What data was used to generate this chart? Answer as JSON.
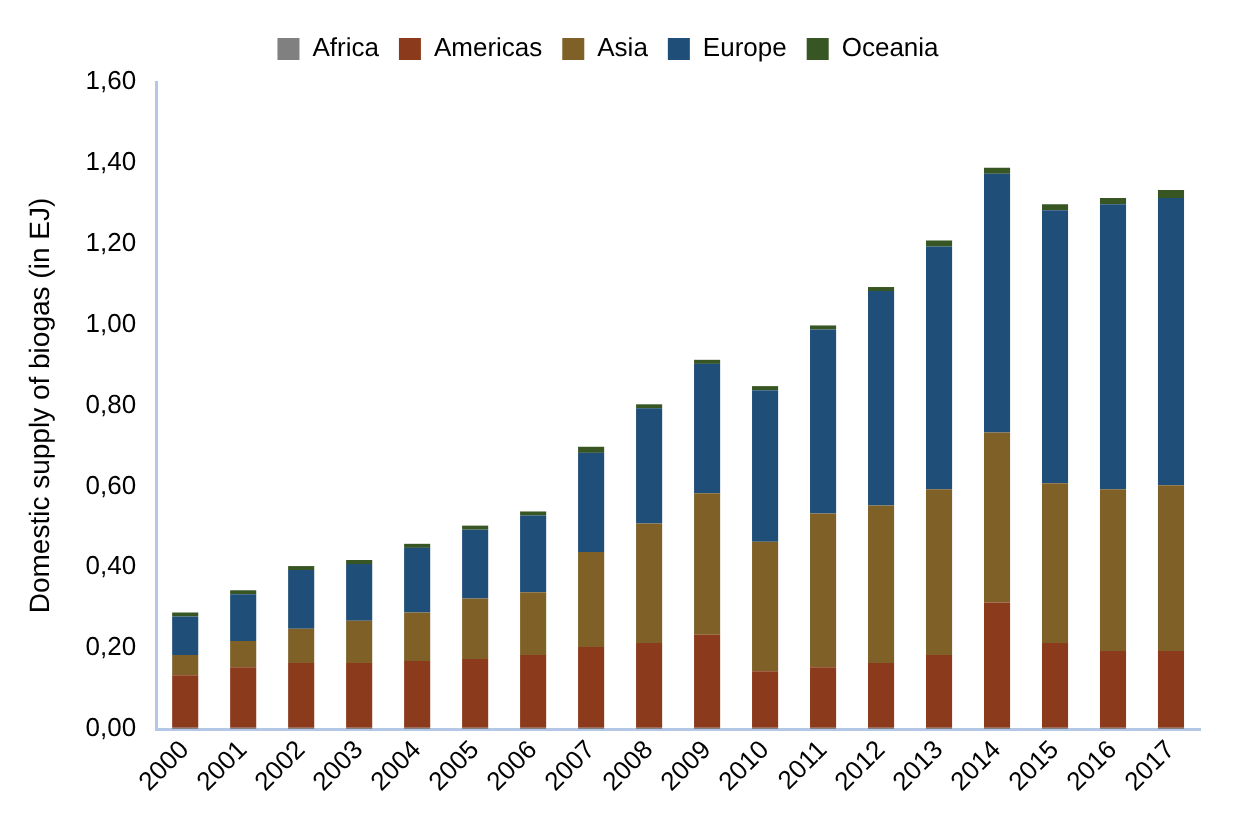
{
  "chart_data": {
    "type": "bar",
    "stacked": true,
    "ylabel": "Domestic supply of biogas (in EJ)",
    "categories": [
      "2000",
      "2001",
      "2002",
      "2003",
      "2004",
      "2005",
      "2006",
      "2007",
      "2008",
      "2009",
      "2010",
      "2011",
      "2012",
      "2013",
      "2014",
      "2015",
      "2016",
      "2017"
    ],
    "series": [
      {
        "name": "Africa",
        "color": "#808080",
        "values": [
          0.003,
          0.003,
          0.003,
          0.003,
          0.003,
          0.003,
          0.003,
          0.003,
          0.003,
          0.003,
          0.003,
          0.003,
          0.003,
          0.003,
          0.003,
          0.003,
          0.003,
          0.003
        ]
      },
      {
        "name": "Americas",
        "color": "#8b3a1c",
        "values": [
          0.13,
          0.15,
          0.16,
          0.16,
          0.165,
          0.17,
          0.18,
          0.2,
          0.21,
          0.23,
          0.14,
          0.15,
          0.16,
          0.18,
          0.31,
          0.21,
          0.19,
          0.19
        ]
      },
      {
        "name": "Asia",
        "color": "#7f6128",
        "values": [
          0.05,
          0.065,
          0.085,
          0.105,
          0.12,
          0.15,
          0.155,
          0.235,
          0.295,
          0.35,
          0.32,
          0.38,
          0.39,
          0.41,
          0.42,
          0.395,
          0.4,
          0.41
        ]
      },
      {
        "name": "Europe",
        "color": "#1f4e79",
        "values": [
          0.095,
          0.115,
          0.145,
          0.14,
          0.16,
          0.17,
          0.19,
          0.245,
          0.285,
          0.32,
          0.375,
          0.455,
          0.53,
          0.6,
          0.64,
          0.675,
          0.705,
          0.71
        ]
      },
      {
        "name": "Oceania",
        "color": "#375623",
        "values": [
          0.01,
          0.01,
          0.01,
          0.01,
          0.01,
          0.01,
          0.01,
          0.015,
          0.01,
          0.01,
          0.01,
          0.01,
          0.01,
          0.015,
          0.015,
          0.015,
          0.015,
          0.02
        ]
      }
    ],
    "ylim": [
      0,
      1.6
    ],
    "yticks": [
      {
        "value": 0,
        "label": "0,00"
      },
      {
        "value": 0.2,
        "label": "0,20"
      },
      {
        "value": 0.4,
        "label": "0,40"
      },
      {
        "value": 0.6,
        "label": "0,60"
      },
      {
        "value": 0.8,
        "label": "0,80"
      },
      {
        "value": 1,
        "label": "1,00"
      },
      {
        "value": 1.2,
        "label": "1,20"
      },
      {
        "value": 1.4,
        "label": "1,40"
      },
      {
        "value": 1.6,
        "label": "1,60"
      }
    ],
    "grid": false,
    "legend": "top"
  }
}
